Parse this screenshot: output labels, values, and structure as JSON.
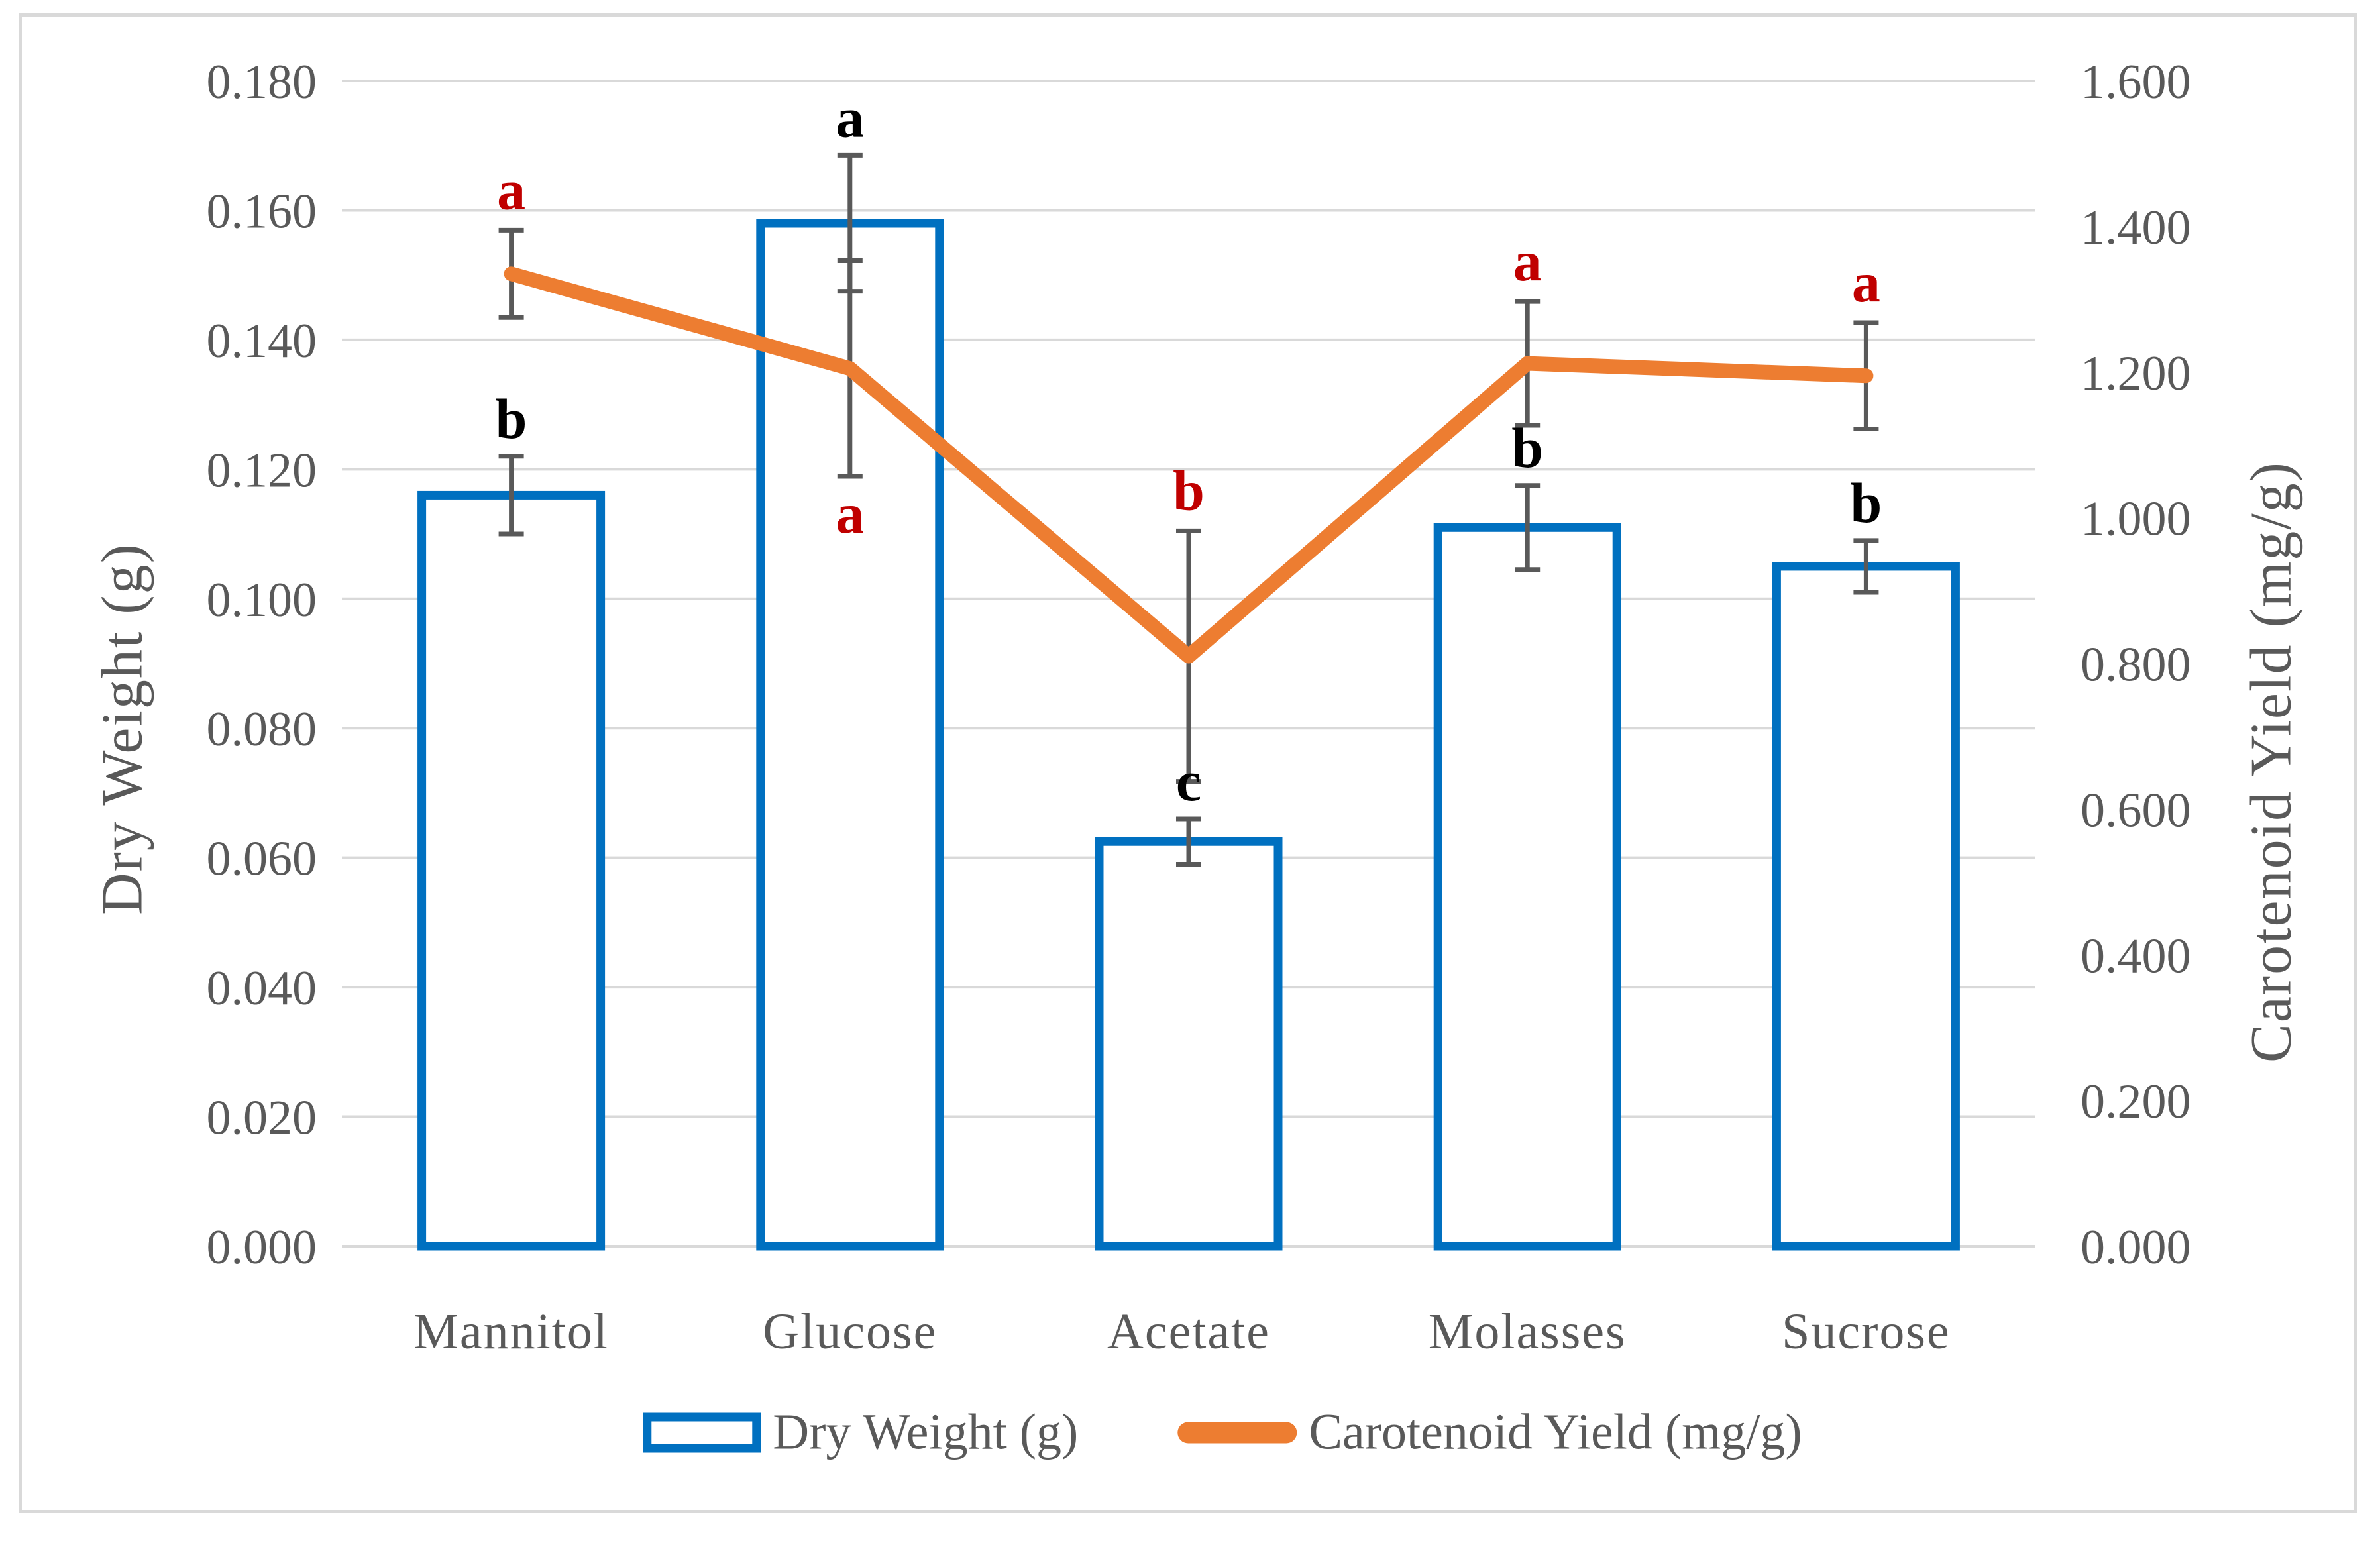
{
  "figure": {
    "left_axis_title": "Dry Weight (g)",
    "right_axis_title": "Carotenoid Yield (mg/g)",
    "legend": {
      "bar_label": "Dry Weight (g)",
      "line_label": "Carotenoid Yield (mg/g)"
    }
  },
  "chart_data": {
    "type": "combo bar+line with dual y-axes and error bars",
    "categories": [
      "Mannitol",
      "Glucose",
      "Acetate",
      "Molasses",
      "Sucrose"
    ],
    "series": [
      {
        "name": "Dry Weight (g)",
        "type": "bar",
        "axis": "left",
        "values": [
          0.116,
          0.158,
          0.0625,
          0.111,
          0.105
        ],
        "error_bars": [
          0.006,
          0.0105,
          0.0035,
          0.0065,
          0.004
        ],
        "significance_letters": [
          "b",
          "a",
          "c",
          "b",
          "b"
        ],
        "letter_positions": [
          "above",
          "above",
          "above",
          "above",
          "above"
        ]
      },
      {
        "name": "Carotenoid Yield (mg/g)",
        "type": "line",
        "axis": "right",
        "values": [
          1.335,
          1.205,
          0.81,
          1.212,
          1.195
        ],
        "error_bars": [
          0.06,
          0.148,
          0.172,
          0.085,
          0.073
        ],
        "significance_letters": [
          "a",
          "a",
          "b",
          "a",
          "a"
        ],
        "letter_positions": [
          "above",
          "below",
          "above",
          "above",
          "above"
        ]
      }
    ],
    "left_axis": {
      "label": "Dry Weight (g)",
      "min": 0.0,
      "max": 0.18,
      "step": 0.02,
      "decimals": 3,
      "tick_labels": [
        "0.000",
        "0.020",
        "0.040",
        "0.060",
        "0.080",
        "0.100",
        "0.120",
        "0.140",
        "0.160",
        "0.180"
      ]
    },
    "right_axis": {
      "label": "Carotenoid Yield (mg/g)",
      "min": 0.0,
      "max": 1.6,
      "step": 0.2,
      "decimals": 3,
      "tick_labels": [
        "0.000",
        "0.200",
        "0.400",
        "0.600",
        "0.800",
        "1.000",
        "1.200",
        "1.400",
        "1.600"
      ]
    },
    "grid": true,
    "legend_position": "bottom",
    "colors": {
      "bar_outline": "#0070C0",
      "bar_fill": "#FFFFFF",
      "line": "#ED7D31",
      "sig_letter_bar": "#000000",
      "sig_letter_line": "#C00000",
      "axis_text": "#595959",
      "gridline": "#D9D9D9",
      "error_bar": "#595959",
      "border": "#D9D9D9",
      "background": "#FFFFFF"
    }
  }
}
